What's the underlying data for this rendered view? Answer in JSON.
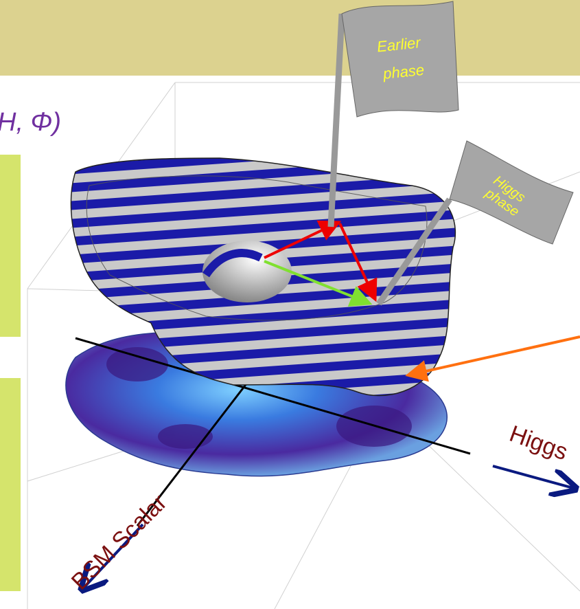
{
  "slide": {
    "header_fragment": "H, Φ)",
    "flags": [
      {
        "lines": [
          "Earlier",
          "phase"
        ]
      },
      {
        "lines": [
          "Higgs",
          "phase"
        ]
      }
    ],
    "axes": {
      "x_label": "Higgs",
      "y_label": "BSM Scalar"
    }
  }
}
